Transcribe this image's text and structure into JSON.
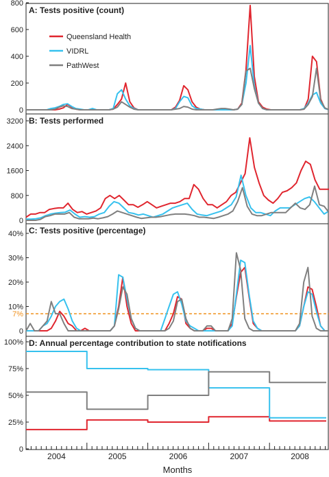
{
  "colors": {
    "qh": "#e0252e",
    "vidrl": "#36c1ee",
    "pw": "#7f7f7f",
    "ref": "#f0901c",
    "axis": "#222222"
  },
  "xaxis": {
    "label": "Months",
    "years": [
      "2004",
      "2005",
      "2006",
      "2007",
      "2008"
    ]
  },
  "chart_data": [
    {
      "type": "line",
      "title": "A: Tests positive (count)",
      "ylim": [
        0,
        800
      ],
      "yticks": [
        "0",
        "200",
        "400",
        "600",
        "800"
      ],
      "legend": [
        "Queensland Health",
        "VIDRL",
        "PathWest"
      ],
      "series": [
        {
          "name": "Queensland Health",
          "values": [
            0,
            0,
            0,
            0,
            0,
            0,
            0,
            0,
            5,
            15,
            40,
            20,
            5,
            0,
            0,
            0,
            0,
            0,
            0,
            0,
            0,
            5,
            40,
            80,
            200,
            60,
            15,
            0,
            0,
            0,
            0,
            0,
            0,
            0,
            0,
            0,
            20,
            70,
            180,
            150,
            60,
            20,
            5,
            0,
            0,
            0,
            0,
            0,
            0,
            0,
            0,
            5,
            50,
            300,
            780,
            250,
            60,
            20,
            5,
            0,
            0,
            0,
            0,
            0,
            0,
            0,
            0,
            5,
            80,
            400,
            360,
            80,
            10,
            0
          ]
        },
        {
          "name": "VIDRL",
          "values": [
            0,
            0,
            0,
            0,
            0,
            0,
            10,
            15,
            25,
            40,
            45,
            25,
            10,
            5,
            0,
            0,
            10,
            0,
            0,
            0,
            0,
            10,
            120,
            150,
            80,
            30,
            10,
            0,
            0,
            0,
            0,
            0,
            0,
            0,
            0,
            0,
            10,
            60,
            100,
            90,
            30,
            10,
            5,
            0,
            0,
            0,
            0,
            0,
            0,
            0,
            0,
            5,
            40,
            200,
            480,
            180,
            50,
            10,
            0,
            0,
            0,
            0,
            0,
            0,
            0,
            0,
            0,
            10,
            50,
            110,
            130,
            50,
            10,
            0
          ]
        },
        {
          "name": "PathWest",
          "values": [
            0,
            0,
            0,
            0,
            0,
            0,
            0,
            5,
            20,
            30,
            25,
            10,
            5,
            0,
            0,
            0,
            0,
            0,
            0,
            0,
            0,
            5,
            20,
            60,
            40,
            20,
            5,
            0,
            0,
            0,
            0,
            0,
            0,
            0,
            0,
            0,
            5,
            10,
            25,
            20,
            5,
            0,
            0,
            0,
            0,
            0,
            5,
            10,
            10,
            5,
            0,
            5,
            40,
            290,
            310,
            160,
            50,
            10,
            0,
            0,
            0,
            0,
            0,
            0,
            0,
            0,
            0,
            5,
            40,
            100,
            310,
            70,
            15,
            0
          ]
        }
      ]
    },
    {
      "type": "line",
      "title": "B: Tests performed",
      "ylim": [
        0,
        3200
      ],
      "yticks": [
        "0",
        "800",
        "1600",
        "2400",
        "3200"
      ],
      "series": [
        {
          "name": "Queensland Health",
          "values": [
            100,
            200,
            200,
            250,
            250,
            350,
            380,
            400,
            400,
            550,
            350,
            250,
            280,
            200,
            250,
            300,
            400,
            700,
            800,
            700,
            800,
            650,
            500,
            500,
            420,
            500,
            600,
            500,
            400,
            450,
            500,
            550,
            550,
            600,
            700,
            700,
            1150,
            1000,
            700,
            500,
            500,
            400,
            500,
            600,
            800,
            900,
            1200,
            1500,
            2650,
            1700,
            1200,
            800,
            650,
            550,
            700,
            900,
            950,
            1050,
            1200,
            1600,
            1900,
            1800,
            1300,
            1000,
            1000,
            1000
          ]
        },
        {
          "name": "VIDRL",
          "values": [
            40,
            40,
            50,
            80,
            150,
            200,
            230,
            250,
            260,
            330,
            200,
            100,
            120,
            100,
            120,
            200,
            250,
            450,
            600,
            550,
            400,
            250,
            220,
            170,
            200,
            150,
            100,
            150,
            200,
            300,
            400,
            450,
            500,
            550,
            350,
            200,
            170,
            150,
            200,
            250,
            300,
            400,
            500,
            750,
            1450,
            800,
            400,
            250,
            250,
            200,
            150,
            300,
            400,
            400,
            400,
            500,
            600,
            700,
            750,
            600,
            400,
            200,
            300
          ]
        },
        {
          "name": "PathWest",
          "values": [
            0,
            0,
            0,
            30,
            120,
            150,
            200,
            200,
            200,
            250,
            100,
            50,
            50,
            50,
            70,
            50,
            80,
            120,
            200,
            300,
            250,
            200,
            150,
            100,
            60,
            80,
            100,
            100,
            120,
            150,
            180,
            200,
            200,
            200,
            180,
            150,
            100,
            100,
            80,
            60,
            100,
            150,
            200,
            300,
            600,
            1050,
            450,
            200,
            150,
            150,
            200,
            250,
            250,
            250,
            250,
            400,
            550,
            400,
            350,
            500,
            1100,
            500,
            450,
            250
          ]
        }
      ]
    },
    {
      "type": "line",
      "title": "C: Tests positive (percentage)",
      "ylim": [
        0,
        40
      ],
      "yticks": [
        "0",
        "10%",
        "20%",
        "30%",
        "40%"
      ],
      "reference_line": {
        "value": 7,
        "label": "7%"
      },
      "series": [
        {
          "name": "Queensland Health",
          "values": [
            0,
            0,
            0,
            0,
            0,
            0,
            1,
            4,
            8,
            6,
            3,
            2,
            0,
            0,
            1,
            0,
            0,
            0,
            0,
            0,
            0,
            2,
            10,
            22,
            10,
            3,
            0,
            0,
            0,
            0,
            0,
            0,
            0,
            0,
            3,
            7,
            14,
            13,
            3,
            1,
            0,
            0,
            0,
            1,
            1,
            0,
            0,
            0,
            0,
            3,
            14,
            24,
            26,
            14,
            3,
            1,
            0,
            0,
            0,
            0,
            0,
            0,
            0,
            0,
            0,
            2,
            10,
            18,
            17,
            10,
            2,
            0,
            0
          ]
        },
        {
          "name": "VIDRL",
          "values": [
            0,
            0,
            0,
            0,
            2,
            3,
            6,
            10,
            12,
            13,
            9,
            4,
            1,
            0,
            0,
            0,
            0,
            0,
            0,
            0,
            0,
            2,
            23,
            22,
            13,
            5,
            1,
            0,
            0,
            0,
            0,
            0,
            0,
            5,
            10,
            15,
            16,
            11,
            4,
            2,
            1,
            0,
            0,
            0,
            0,
            0,
            0,
            0,
            0,
            2,
            15,
            29,
            28,
            15,
            4,
            1,
            0,
            0,
            0,
            0,
            0,
            0,
            0,
            0,
            0,
            2,
            10,
            16,
            15,
            8,
            2,
            0,
            0
          ]
        },
        {
          "name": "PathWest",
          "values": [
            0,
            3,
            0,
            0,
            2,
            4,
            12,
            7,
            7,
            3,
            0,
            0,
            0,
            0,
            0,
            0,
            0,
            0,
            0,
            0,
            0,
            2,
            9,
            18,
            15,
            5,
            1,
            0,
            0,
            0,
            0,
            0,
            0,
            0,
            1,
            4,
            12,
            13,
            5,
            1,
            0,
            0,
            0,
            2,
            2,
            0,
            0,
            0,
            0,
            5,
            32,
            25,
            5,
            1,
            0,
            0,
            0,
            0,
            0,
            0,
            0,
            0,
            0,
            0,
            0,
            3,
            20,
            26,
            6,
            1,
            0,
            0,
            0
          ]
        }
      ]
    },
    {
      "type": "line",
      "title": "D: Annual percentage contribution to state notifications",
      "ylim": [
        0,
        100
      ],
      "yticks": [
        "0",
        "25%",
        "50%",
        "75%",
        "100%"
      ],
      "x": [
        "2004",
        "2005",
        "2006",
        "2007",
        "2008"
      ],
      "series": [
        {
          "name": "Queensland Health",
          "values": [
            18,
            27,
            25,
            30,
            26
          ]
        },
        {
          "name": "VIDRL",
          "values": [
            91,
            75,
            74,
            57,
            29
          ]
        },
        {
          "name": "PathWest",
          "values": [
            53,
            37,
            50,
            72,
            62
          ]
        }
      ]
    }
  ]
}
